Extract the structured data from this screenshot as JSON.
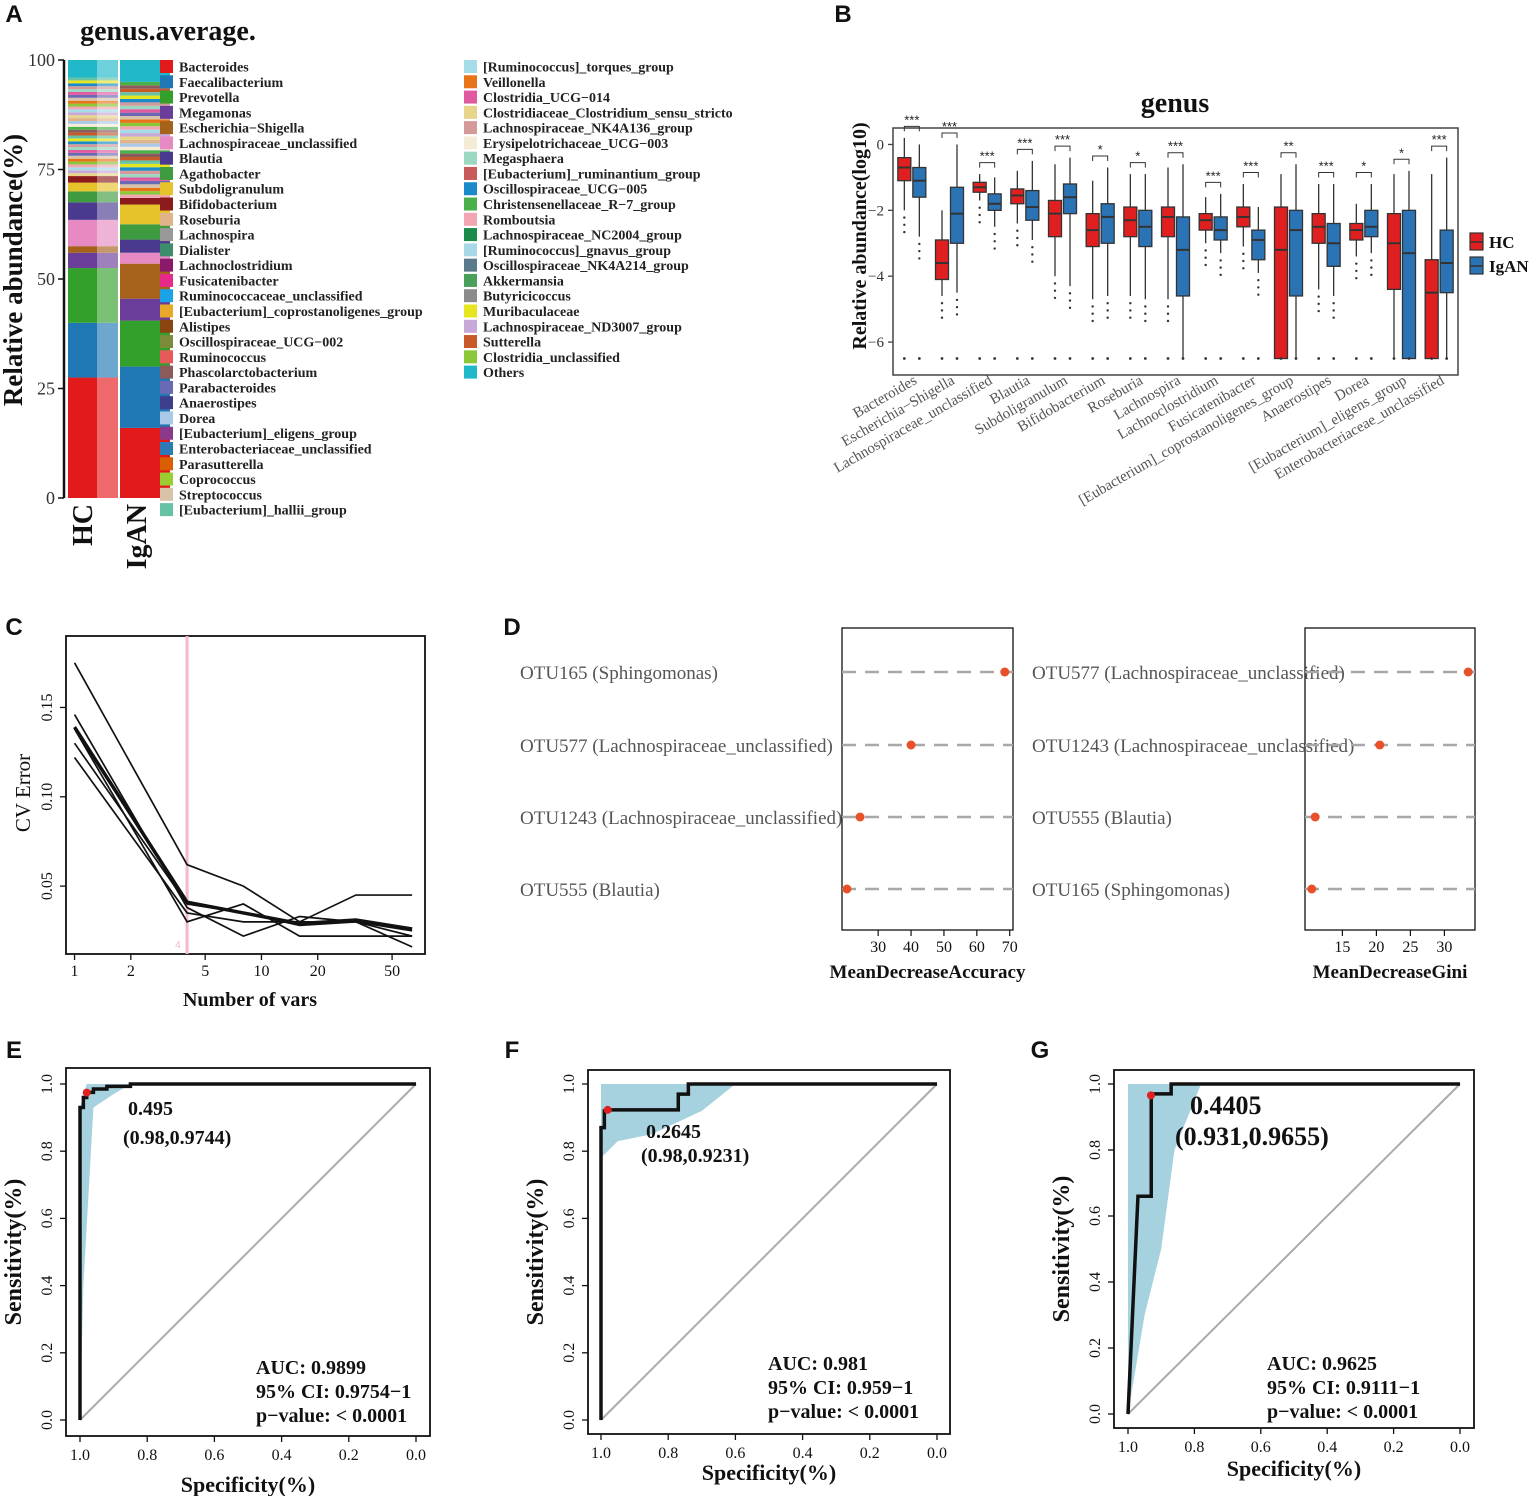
{
  "panel_letters": [
    "A",
    "B",
    "C",
    "D",
    "E",
    "F",
    "G"
  ],
  "colors": {
    "hc": "#e02020",
    "igan": "#2a73b5",
    "pink_line": "#f4b8c8",
    "roc_fill": "#a6d2df",
    "dot": "#e8502a",
    "grey_line": "#a8a8a8"
  },
  "chart_data": [
    {
      "id": "A",
      "type": "bar",
      "stacked": true,
      "title": "genus.average.",
      "xlabel": "",
      "ylabel": "Relative abundance(%)",
      "ylim": [
        0,
        100
      ],
      "yticks": [
        "0",
        "25",
        "50",
        "75",
        "100"
      ],
      "categories": [
        "HC",
        "IgAN"
      ],
      "legend_col1": [
        "Bacteroides",
        "Faecalibacterium",
        "Prevotella",
        "Megamonas",
        "Escherichia−Shigella",
        "Lachnospiraceae_unclassified",
        "Blautia",
        "Agathobacter",
        "Subdoligranulum",
        "Bifidobacterium",
        "Roseburia",
        "Lachnospira",
        "Dialister",
        "Lachnoclostridium",
        "Fusicatenibacter",
        "Ruminococcaceae_unclassified",
        "[Eubacterium]_coprostanoligenes_group",
        "Alistipes",
        "Oscillospiraceae_UCG−002",
        "Ruminococcus",
        "Phascolarctobacterium",
        "Parabacteroides",
        "Anaerostipes",
        "Dorea",
        "[Eubacterium]_eligens_group",
        "Enterobacteriaceae_unclassified",
        "Parasutterella",
        "Coprococcus",
        "Streptococcus",
        "[Eubacterium]_hallii_group"
      ],
      "legend_col2": [
        "[Ruminococcus]_torques_group",
        "Veillonella",
        "Clostridia_UCG−014",
        "Clostridiaceae_Clostridium_sensu_stricto",
        "Lachnospiraceae_NK4A136_group",
        "Erysipelotrichaceae_UCG−003",
        "Megasphaera",
        "[Eubacterium]_ruminantium_group",
        "Oscillospiraceae_UCG−005",
        "Christensenellaceae_R−7_group",
        "Romboutsia",
        "Lachnospiraceae_NC2004_group",
        "[Ruminococcus]_gnavus_group",
        "Oscillospiraceae_NK4A214_group",
        "Akkermansia",
        "Butyricicoccus",
        "Muribaculaceae",
        "Lachnospiraceae_ND3007_group",
        "Sutterella",
        "Clostridia_unclassified",
        "Others"
      ],
      "legend_colors_col1": [
        "#e31a1c",
        "#1f78b4",
        "#33a02c",
        "#6a3d9a",
        "#a6611a",
        "#e78ac3",
        "#4b3990",
        "#3f9b3f",
        "#e6c32a",
        "#8b1a1a",
        "#e0b48a",
        "#999999",
        "#3d8c6b",
        "#8b1a6b",
        "#e7298a",
        "#1ba3e8",
        "#e8a82a",
        "#8b4513",
        "#7a8b3a",
        "#e85a5a",
        "#8b5a5a",
        "#6a6ab4",
        "#3d3d8b",
        "#aac8e8",
        "#8b3a8b",
        "#2c7bb6",
        "#d95f02",
        "#9acd32",
        "#d9c3a8",
        "#66c2a5"
      ],
      "legend_colors_col2": [
        "#a6dbe8",
        "#e8741a",
        "#e05aa0",
        "#e8d48a",
        "#d49a9a",
        "#f5ecd7",
        "#9cd8c0",
        "#c85a5a",
        "#1a8ac8",
        "#4ab04a",
        "#f2a6b4",
        "#1a8b4a",
        "#a6d8e8",
        "#5a7a8b",
        "#4aa05a",
        "#8b8b8b",
        "#e6e620",
        "#c8a8d8",
        "#c85a2a",
        "#8ac83a",
        "#20b8c8"
      ],
      "series": [
        {
          "name": "HC",
          "segments": [
            {
              "genus": "Bacteroides",
              "value": 27.5
            },
            {
              "genus": "Faecalibacterium",
              "value": 12.5
            },
            {
              "genus": "Prevotella",
              "value": 12.5
            },
            {
              "genus": "Megamonas",
              "value": 3.5
            },
            {
              "genus": "Escherichia−Shigella",
              "value": 1.5
            },
            {
              "genus": "Lachnospiraceae_unclassified",
              "value": 6
            },
            {
              "genus": "Blautia",
              "value": 4
            },
            {
              "genus": "Agathobacter",
              "value": 2.5
            },
            {
              "genus": "Subdoligranulum",
              "value": 2
            },
            {
              "genus": "Bifidobacterium",
              "value": 1.5
            },
            {
              "genus": "Others",
              "value": 4
            }
          ]
        },
        {
          "name": "IgAN",
          "segments": [
            {
              "genus": "Bacteroides",
              "value": 16
            },
            {
              "genus": "Faecalibacterium",
              "value": 14
            },
            {
              "genus": "Prevotella",
              "value": 10.5
            },
            {
              "genus": "Megamonas",
              "value": 5
            },
            {
              "genus": "Escherichia−Shigella",
              "value": 8
            },
            {
              "genus": "Lachnospiraceae_unclassified",
              "value": 2.5
            },
            {
              "genus": "Blautia",
              "value": 3
            },
            {
              "genus": "Agathobacter",
              "value": 3.5
            },
            {
              "genus": "Subdoligranulum",
              "value": 4.5
            },
            {
              "genus": "Bifidobacterium",
              "value": 1.5
            },
            {
              "genus": "Others",
              "value": 5
            }
          ]
        }
      ]
    },
    {
      "id": "B",
      "type": "box",
      "title": "genus",
      "xlabel": "",
      "ylabel": "Relative abundance(log10)",
      "ylim": [
        -7,
        0.5
      ],
      "yticks": [
        0,
        -2,
        -4,
        -6
      ],
      "legend": [
        "HC",
        "IgAN"
      ],
      "categories": [
        "Bacteroides",
        "Escherichia−Shigella",
        "Lachnospiraceae_unclassified",
        "Blautia",
        "Subdoligranulum",
        "Bifidobacterium",
        "Roseburia",
        "Lachnospira",
        "Lachnoclostridium",
        "Fusicatenibacter",
        "[Eubacterium]_coprostanoligenes_group",
        "Anaerostipes",
        "Dorea",
        "[Eubacterium]_eligens_group",
        "Enterobacteriaceae_unclassified"
      ],
      "significance": [
        "***",
        "***",
        "***",
        "***",
        "***",
        "*",
        "*",
        "***",
        "***",
        "***",
        "**",
        "***",
        "*",
        "*",
        "***"
      ],
      "series": [
        {
          "name": "HC",
          "boxes": [
            [
              -2.0,
              -1.1,
              -0.7,
              -0.4,
              0.2
            ],
            [
              -4.6,
              -4.1,
              -3.6,
              -2.9,
              -2.0
            ],
            [
              -1.7,
              -1.45,
              -1.3,
              -1.15,
              -0.9
            ],
            [
              -2.4,
              -1.8,
              -1.55,
              -1.35,
              -0.8
            ],
            [
              -4.0,
              -2.8,
              -2.1,
              -1.7,
              -0.6
            ],
            [
              -4.7,
              -3.1,
              -2.6,
              -2.1,
              -1.1
            ],
            [
              -4.6,
              -2.8,
              -2.3,
              -1.9,
              -0.9
            ],
            [
              -4.7,
              -2.8,
              -2.2,
              -1.9,
              -0.7
            ],
            [
              -3.0,
              -2.6,
              -2.3,
              -2.1,
              -1.6
            ],
            [
              -3.1,
              -2.5,
              -2.2,
              -1.9,
              -1.2
            ],
            [
              -6.5,
              -6.5,
              -3.2,
              -1.9,
              -0.9
            ],
            [
              -4.4,
              -3.0,
              -2.5,
              -2.1,
              -1.2
            ],
            [
              -3.4,
              -2.9,
              -2.6,
              -2.4,
              -1.8
            ],
            [
              -6.5,
              -4.4,
              -3.0,
              -2.1,
              -0.9
            ],
            [
              -6.5,
              -6.5,
              -4.5,
              -3.5,
              -0.9
            ]
          ]
        },
        {
          "name": "IgAN",
          "boxes": [
            [
              -2.8,
              -1.6,
              -1.1,
              -0.7,
              0.0
            ],
            [
              -4.5,
              -3.0,
              -2.1,
              -1.3,
              0.0
            ],
            [
              -2.5,
              -2.0,
              -1.8,
              -1.5,
              -1.0
            ],
            [
              -2.9,
              -2.3,
              -1.9,
              -1.4,
              -0.5
            ],
            [
              -4.3,
              -2.1,
              -1.6,
              -1.2,
              -0.4
            ],
            [
              -4.6,
              -3.0,
              -2.2,
              -1.8,
              -0.7
            ],
            [
              -4.7,
              -3.1,
              -2.5,
              -2.0,
              -0.9
            ],
            [
              -6.5,
              -4.6,
              -3.2,
              -2.2,
              -0.6
            ],
            [
              -3.3,
              -2.9,
              -2.6,
              -2.2,
              -1.5
            ],
            [
              -3.9,
              -3.5,
              -2.9,
              -2.6,
              -1.9
            ],
            [
              -6.5,
              -4.6,
              -2.6,
              -2.0,
              -0.6
            ],
            [
              -4.6,
              -3.7,
              -3.0,
              -2.4,
              -1.2
            ],
            [
              -3.3,
              -2.8,
              -2.5,
              -2.0,
              -1.2
            ],
            [
              -6.5,
              -6.5,
              -3.3,
              -2.0,
              -0.8
            ],
            [
              -6.5,
              -4.5,
              -3.6,
              -2.6,
              -0.4
            ]
          ]
        }
      ]
    },
    {
      "id": "C",
      "type": "line",
      "xscale": "log",
      "xlabel": "Number of vars",
      "ylabel": "CV Error",
      "xticks": [
        1,
        2,
        5,
        10,
        20,
        50
      ],
      "yticks": [
        0.05,
        0.1,
        0.15
      ],
      "xlim": [
        0.9,
        75
      ],
      "ylim": [
        0.012,
        0.19
      ],
      "marker_x": 4,
      "marker_label": "4",
      "series": [
        {
          "name": "cv1",
          "x": [
            1,
            4,
            8,
            16,
            32,
            64
          ],
          "y": [
            0.175,
            0.062,
            0.05,
            0.03,
            0.045,
            0.045
          ]
        },
        {
          "name": "cv2",
          "x": [
            1,
            4,
            8,
            16,
            32,
            64
          ],
          "y": [
            0.146,
            0.038,
            0.022,
            0.033,
            0.03,
            0.022
          ]
        },
        {
          "name": "cv3",
          "x": [
            1,
            4,
            8,
            16,
            32,
            64
          ],
          "y": [
            0.138,
            0.03,
            0.04,
            0.022,
            0.022,
            0.022
          ]
        },
        {
          "name": "cv4",
          "x": [
            1,
            4,
            8,
            16,
            32,
            64
          ],
          "y": [
            0.122,
            0.035,
            0.03,
            0.03,
            0.03,
            0.016
          ]
        },
        {
          "name": "cv5",
          "x": [
            1,
            4,
            8,
            16,
            32,
            64
          ],
          "y": [
            0.13,
            0.04,
            0.035,
            0.028,
            0.03,
            0.025
          ]
        },
        {
          "name": "mean",
          "x": [
            1,
            4,
            8,
            16,
            32,
            64
          ],
          "y": [
            0.139,
            0.041,
            0.035,
            0.029,
            0.031,
            0.026
          ],
          "bold": true
        }
      ]
    },
    {
      "id": "D1",
      "type": "scatter",
      "xlabel": "MeanDecreaseAccuracy",
      "xticks": [
        30,
        40,
        50,
        60,
        70
      ],
      "xlim": [
        19,
        71
      ],
      "labels": [
        "OTU165 (Sphingomonas)",
        "OTU577 (Lachnospiraceae_unclassified)",
        "OTU1243 (Lachnospiraceae_unclassified)",
        "OTU555 (Blautia)"
      ],
      "values": [
        68.5,
        40.0,
        24.5,
        20.5
      ]
    },
    {
      "id": "D2",
      "type": "scatter",
      "xlabel": "MeanDecreaseGini",
      "xticks": [
        15,
        20,
        25,
        30
      ],
      "xlim": [
        9.5,
        34.5
      ],
      "labels": [
        "OTU577 (Lachnospiraceae_unclassified)",
        "OTU1243 (Lachnospiraceae_unclassified)",
        "OTU555 (Blautia)",
        "OTU165 (Sphingomonas)"
      ],
      "values": [
        33.5,
        20.5,
        11.0,
        10.5
      ]
    },
    {
      "id": "E",
      "type": "line",
      "subtype": "roc",
      "xlabel": "Specificity(%)",
      "ylabel": "Sensitivity(%)",
      "xticks": [
        1.0,
        0.8,
        0.6,
        0.4,
        0.2,
        0.0
      ],
      "yticks": [
        0.0,
        0.2,
        0.4,
        0.6,
        0.8,
        1.0
      ],
      "xlim": [
        1.0,
        0.0
      ],
      "ylim": [
        0.0,
        1.0
      ],
      "curve": {
        "specificity": [
          1.0,
          1.0,
          0.99,
          0.99,
          0.98,
          0.98,
          0.96,
          0.96,
          0.92,
          0.92,
          0.85,
          0.85,
          0.0
        ],
        "sensitivity": [
          0.0,
          0.93,
          0.93,
          0.96,
          0.96,
          0.975,
          0.975,
          0.985,
          0.985,
          0.993,
          0.993,
          1.0,
          1.0
        ]
      },
      "ci_band": {
        "upper": [
          [
            1.0,
            0.93
          ],
          [
            0.98,
            1.0
          ],
          [
            0.0,
            1.0
          ]
        ],
        "lower": [
          [
            0.0,
            1.0
          ],
          [
            0.85,
            1.0
          ],
          [
            0.9,
            0.97
          ],
          [
            0.96,
            0.93
          ],
          [
            0.99,
            0.4
          ],
          [
            1.0,
            0.0
          ]
        ]
      },
      "threshold_point": {
        "specificity": 0.98,
        "sensitivity": 0.9744
      },
      "threshold_label": "0.495",
      "coord_label": "(0.98,0.9744)",
      "auc_text": "AUC: 0.9899",
      "ci_text": "95% CI: 0.9754−1",
      "p_text": "p−value: < 0.0001"
    },
    {
      "id": "F",
      "type": "line",
      "subtype": "roc",
      "xlabel": "Specificity(%)",
      "ylabel": "Sensitivity(%)",
      "xticks": [
        1.0,
        0.8,
        0.6,
        0.4,
        0.2,
        0.0
      ],
      "yticks": [
        0.0,
        0.2,
        0.4,
        0.6,
        0.8,
        1.0
      ],
      "xlim": [
        1.0,
        0.0
      ],
      "ylim": [
        0.0,
        1.0
      ],
      "curve": {
        "specificity": [
          1.0,
          1.0,
          0.99,
          0.99,
          0.98,
          0.98,
          0.77,
          0.77,
          0.74,
          0.74,
          0.0
        ],
        "sensitivity": [
          0.0,
          0.87,
          0.87,
          0.92,
          0.92,
          0.923,
          0.923,
          0.97,
          0.97,
          1.0,
          1.0
        ]
      },
      "ci_band": {
        "upper": [
          [
            1.0,
            1.0
          ],
          [
            0.0,
            1.0
          ]
        ],
        "lower": [
          [
            0.0,
            1.0
          ],
          [
            0.6,
            1.0
          ],
          [
            0.7,
            0.92
          ],
          [
            0.85,
            0.85
          ],
          [
            0.95,
            0.83
          ],
          [
            1.0,
            0.78
          ]
        ]
      },
      "threshold_point": {
        "specificity": 0.98,
        "sensitivity": 0.9231
      },
      "threshold_label": "0.2645",
      "coord_label": "(0.98,0.9231)",
      "auc_text": "AUC: 0.981",
      "ci_text": "95% CI: 0.959−1",
      "p_text": "p−value: < 0.0001"
    },
    {
      "id": "G",
      "type": "line",
      "subtype": "roc",
      "xlabel": "Specificity(%)",
      "ylabel": "Sensitivity(%)",
      "xticks": [
        1.0,
        0.8,
        0.6,
        0.4,
        0.2,
        0.0
      ],
      "yticks": [
        0.0,
        0.2,
        0.4,
        0.6,
        0.8,
        1.0
      ],
      "xlim": [
        1.0,
        0.0
      ],
      "ylim": [
        0.0,
        1.0
      ],
      "curve": {
        "specificity": [
          1.0,
          0.97,
          0.97,
          0.93,
          0.93,
          0.931,
          0.931,
          0.87,
          0.87,
          0.0
        ],
        "sensitivity": [
          0.0,
          0.66,
          0.66,
          0.66,
          0.9655,
          0.9655,
          0.97,
          0.97,
          1.0,
          1.0
        ]
      },
      "ci_band": {
        "upper": [
          [
            1.0,
            1.0
          ],
          [
            0.0,
            1.0
          ]
        ],
        "lower": [
          [
            0.0,
            1.0
          ],
          [
            0.78,
            1.0
          ],
          [
            0.86,
            0.8
          ],
          [
            0.9,
            0.5
          ],
          [
            0.95,
            0.3
          ],
          [
            1.0,
            0.0
          ]
        ]
      },
      "threshold_point": {
        "specificity": 0.931,
        "sensitivity": 0.9655
      },
      "threshold_label": "0.4405",
      "coord_label": "(0.931,0.9655)",
      "auc_text": "AUC: 0.9625",
      "ci_text": "95% CI: 0.9111−1",
      "p_text": "p−value: < 0.0001"
    }
  ]
}
